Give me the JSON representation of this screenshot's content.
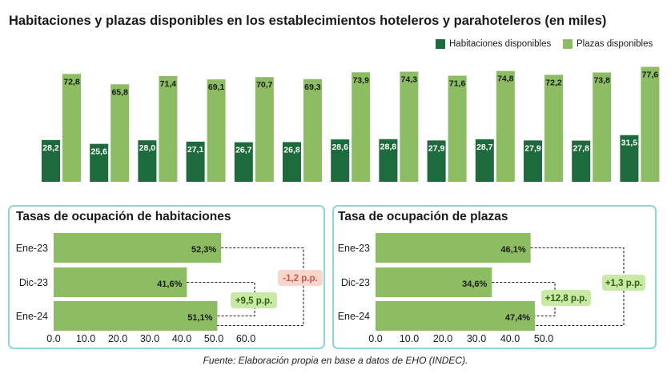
{
  "title": "Habitaciones y plazas disponibles en los establecimientos hoteleros y parahoteleros (en miles)",
  "legend": {
    "series_a": "Habitaciones disponibles",
    "series_b": "Plazas disponibles"
  },
  "colors": {
    "dark_green": "#1d6b3c",
    "light_green": "#8dbd63",
    "panel_border": "#8ed5dc",
    "badge_red_bg": "#f7d6cc",
    "badge_red_text": "#d9524a",
    "badge_green_bg": "#c9eaa6",
    "badge_green_text": "#2f5e10"
  },
  "chart_data": [
    {
      "type": "bar",
      "title": "Habitaciones y plazas disponibles en los establecimientos hoteleros y parahoteleros (en miles)",
      "categories": [
        "",
        "",
        "",
        "",
        "",
        "",
        "",
        "",
        "",
        "",
        "",
        "",
        ""
      ],
      "series": [
        {
          "name": "Habitaciones disponibles",
          "values": [
            28.2,
            25.6,
            28.0,
            27.1,
            26.7,
            26.8,
            28.6,
            28.8,
            27.9,
            28.7,
            27.9,
            27.8,
            31.5
          ],
          "labels": [
            "28,2",
            "25,6",
            "28,0",
            "27,1",
            "26,7",
            "26,8",
            "28,6",
            "28,8",
            "27,9",
            "28,7",
            "27,9",
            "27,8",
            "31,5"
          ]
        },
        {
          "name": "Plazas disponibles",
          "values": [
            72.8,
            65.8,
            71.4,
            69.1,
            70.7,
            69.3,
            73.9,
            74.3,
            71.6,
            74.8,
            72.2,
            73.8,
            77.6
          ],
          "labels": [
            "72,8",
            "65,8",
            "71,4",
            "69,1",
            "70,7",
            "69,3",
            "73,9",
            "74,3",
            "71,6",
            "74,8",
            "72,2",
            "73,8",
            "77,6"
          ]
        }
      ],
      "ylim": [
        0,
        82
      ],
      "grid": false,
      "legend": "top-right"
    },
    {
      "type": "bar",
      "orientation": "horizontal",
      "title": "Tasas de ocupación de habitaciones",
      "categories": [
        "Ene-23",
        "Dic-23",
        "Ene-24"
      ],
      "values": [
        52.3,
        41.6,
        51.1
      ],
      "labels": [
        "52,3%",
        "41,6%",
        "51,1%"
      ],
      "xlim": [
        0,
        60
      ],
      "xticks": [
        "0.0",
        "10.0",
        "20.0",
        "30.0",
        "40.0",
        "50.0",
        "60.0"
      ],
      "annotations": [
        {
          "text": "-1,2 p.p.",
          "from": "Ene-23",
          "to": "Ene-24",
          "tone": "negative"
        },
        {
          "text": "+9,5 p.p.",
          "from": "Dic-23",
          "to": "Ene-24",
          "tone": "positive"
        }
      ]
    },
    {
      "type": "bar",
      "orientation": "horizontal",
      "title": "Tasa de ocupación de plazas",
      "categories": [
        "Ene-23",
        "Dic-23",
        "Ene-24"
      ],
      "values": [
        46.1,
        34.6,
        47.4
      ],
      "labels": [
        "46,1%",
        "34,6%",
        "47,4%"
      ],
      "xlim": [
        0,
        50
      ],
      "xticks": [
        "0.0",
        "10.0",
        "20.0",
        "30.0",
        "40.0",
        "50.0"
      ],
      "annotations": [
        {
          "text": "+12,8 p.p.",
          "from": "Dic-23",
          "to": "Ene-24",
          "tone": "positive"
        },
        {
          "text": "+1,3 p.p.",
          "from": "Ene-23",
          "to": "Ene-24",
          "tone": "positive"
        }
      ]
    }
  ],
  "source": "Fuente: Elaboración propia en base a datos de EHO (INDEC)."
}
